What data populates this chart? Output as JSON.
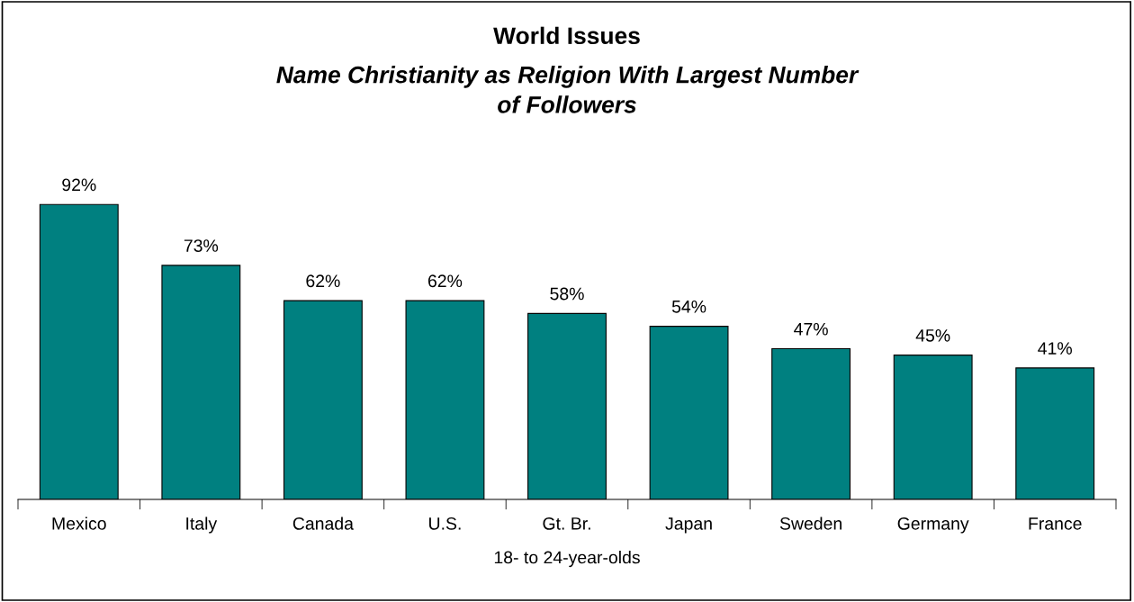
{
  "chart_data": {
    "type": "bar",
    "title": "World Issues",
    "subtitle": "Name Christianity as Religion With Largest Number\nof Followers",
    "xlabel": "18- to 24-year-olds",
    "categories": [
      "Mexico",
      "Italy",
      "Canada",
      "U.S.",
      "Gt. Br.",
      "Japan",
      "Sweden",
      "Germany",
      "France"
    ],
    "values": [
      92,
      73,
      62,
      62,
      58,
      54,
      47,
      45,
      41
    ],
    "value_labels": [
      "92%",
      "73%",
      "62%",
      "62%",
      "58%",
      "54%",
      "47%",
      "45%",
      "41%"
    ],
    "color": "#008080",
    "grid": false,
    "legend": false
  }
}
